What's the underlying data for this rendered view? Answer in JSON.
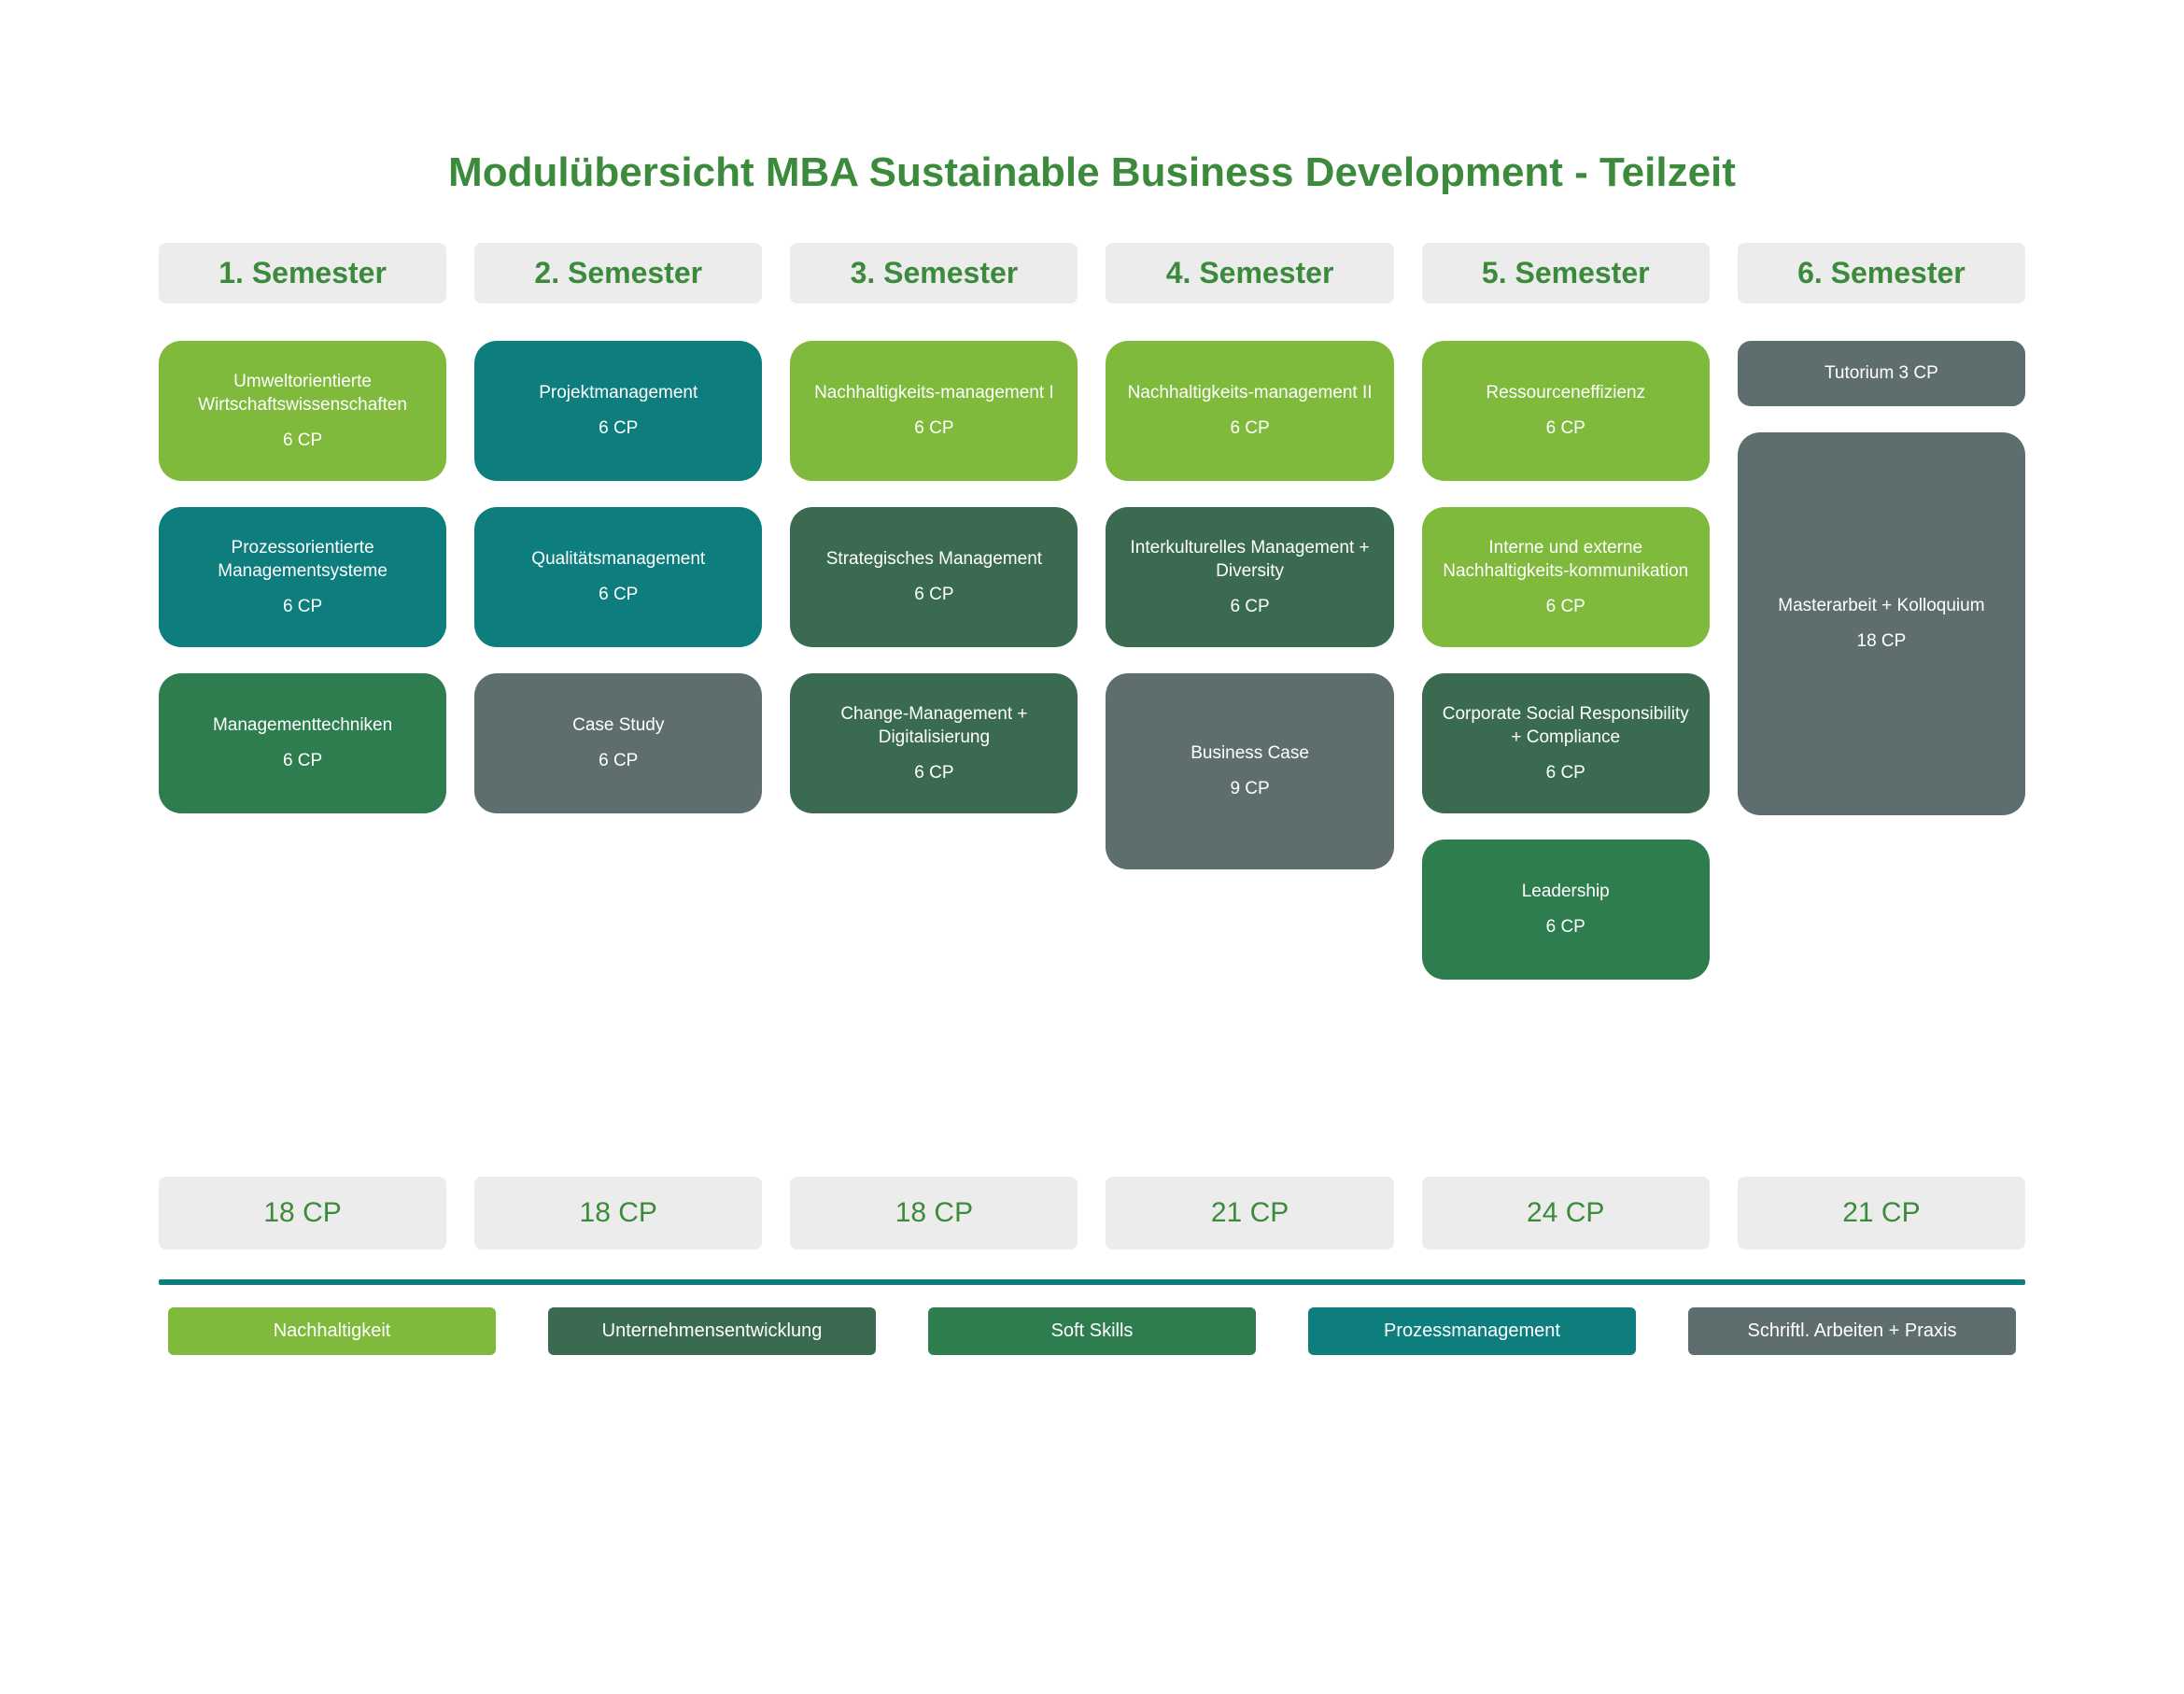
{
  "colors": {
    "lightGreen": "#7fba3c",
    "teal": "#0d7d7d",
    "darkGreen": "#2e7d4f",
    "forest": "#3c8a3c",
    "greenDark": "#3a6b50",
    "greenMid": "#3b8b5a",
    "slate": "#5e6e6e",
    "slateDark": "#4d5e5e",
    "headerBg": "#ececec",
    "textGreen": "#3c8a3c"
  },
  "title": "Modulübersicht MBA Sustainable Business Development - Teilzeit",
  "semesters": [
    {
      "header": "1. Semester",
      "modules": [
        {
          "label": "Umweltorientierte Wirtschaftswissenschaften",
          "cp": "6 CP",
          "color": "#7fba3c",
          "h": "h1"
        },
        {
          "label": "Prozessorientierte Managementsysteme",
          "cp": "6 CP",
          "color": "#0d7d7d",
          "h": "h1"
        },
        {
          "label": "Managementtechniken",
          "cp": "6 CP",
          "color": "#2e7d4f",
          "h": "h1"
        }
      ],
      "total": "18 CP"
    },
    {
      "header": "2. Semester",
      "modules": [
        {
          "label": "Projektmanagement",
          "cp": "6 CP",
          "color": "#0d7d7d",
          "h": "h1"
        },
        {
          "label": "Qualitätsmanagement",
          "cp": "6 CP",
          "color": "#0d7d7d",
          "h": "h1"
        },
        {
          "label": "Case Study",
          "cp": "6 CP",
          "color": "#5e6e6e",
          "h": "h1"
        }
      ],
      "total": "18 CP"
    },
    {
      "header": "3. Semester",
      "modules": [
        {
          "label": "Nachhaltigkeits-management I",
          "cp": "6 CP",
          "color": "#7fba3c",
          "h": "h1"
        },
        {
          "label": "Strategisches Management",
          "cp": "6 CP",
          "color": "#3a6b50",
          "h": "h1"
        },
        {
          "label": "Change-Management + Digitalisierung",
          "cp": "6 CP",
          "color": "#3a6b50",
          "h": "h1"
        }
      ],
      "total": "18 CP"
    },
    {
      "header": "4. Semester",
      "modules": [
        {
          "label": "Nachhaltigkeits-management II",
          "cp": "6 CP",
          "color": "#7fba3c",
          "h": "h1"
        },
        {
          "label": "Interkulturelles Management + Diversity",
          "cp": "6 CP",
          "color": "#3a6b50",
          "h": "h1"
        },
        {
          "label": "Business Case",
          "cp": "9 CP",
          "color": "#5e6e6e",
          "h": "h-tall"
        }
      ],
      "total": "21 CP"
    },
    {
      "header": "5. Semester",
      "modules": [
        {
          "label": "Ressourceneffizienz",
          "cp": "6 CP",
          "color": "#7fba3c",
          "h": "h1"
        },
        {
          "label": "Interne und externe Nachhaltigkeits-kommunikation",
          "cp": "6 CP",
          "color": "#7fba3c",
          "h": "h1"
        },
        {
          "label": "Corporate Social Responsibility + Compliance",
          "cp": "6 CP",
          "color": "#3a6b50",
          "h": "h1"
        },
        {
          "label": "Leadership",
          "cp": "6 CP",
          "color": "#2e7d4f",
          "h": "h1"
        }
      ],
      "total": "24 CP"
    },
    {
      "header": "6. Semester",
      "modules": [
        {
          "label": "Tutorium 3 CP",
          "cp": "",
          "color": "#5e6e6e",
          "h": "h-small"
        },
        {
          "label": "Masterarbeit + Kolloquium",
          "cp": "18 CP",
          "color": "#5e6e6e",
          "h": "h-master"
        }
      ],
      "total": "21 CP"
    }
  ],
  "legend": [
    {
      "label": "Nachhaltigkeit",
      "color": "#7fba3c"
    },
    {
      "label": "Unternehmensentwicklung",
      "color": "#3a6b50"
    },
    {
      "label": "Soft Skills",
      "color": "#2e7d4f"
    },
    {
      "label": "Prozessmanagement",
      "color": "#0d7d7d"
    },
    {
      "label": "Schriftl. Arbeiten + Praxis",
      "color": "#5e6e6e"
    }
  ]
}
